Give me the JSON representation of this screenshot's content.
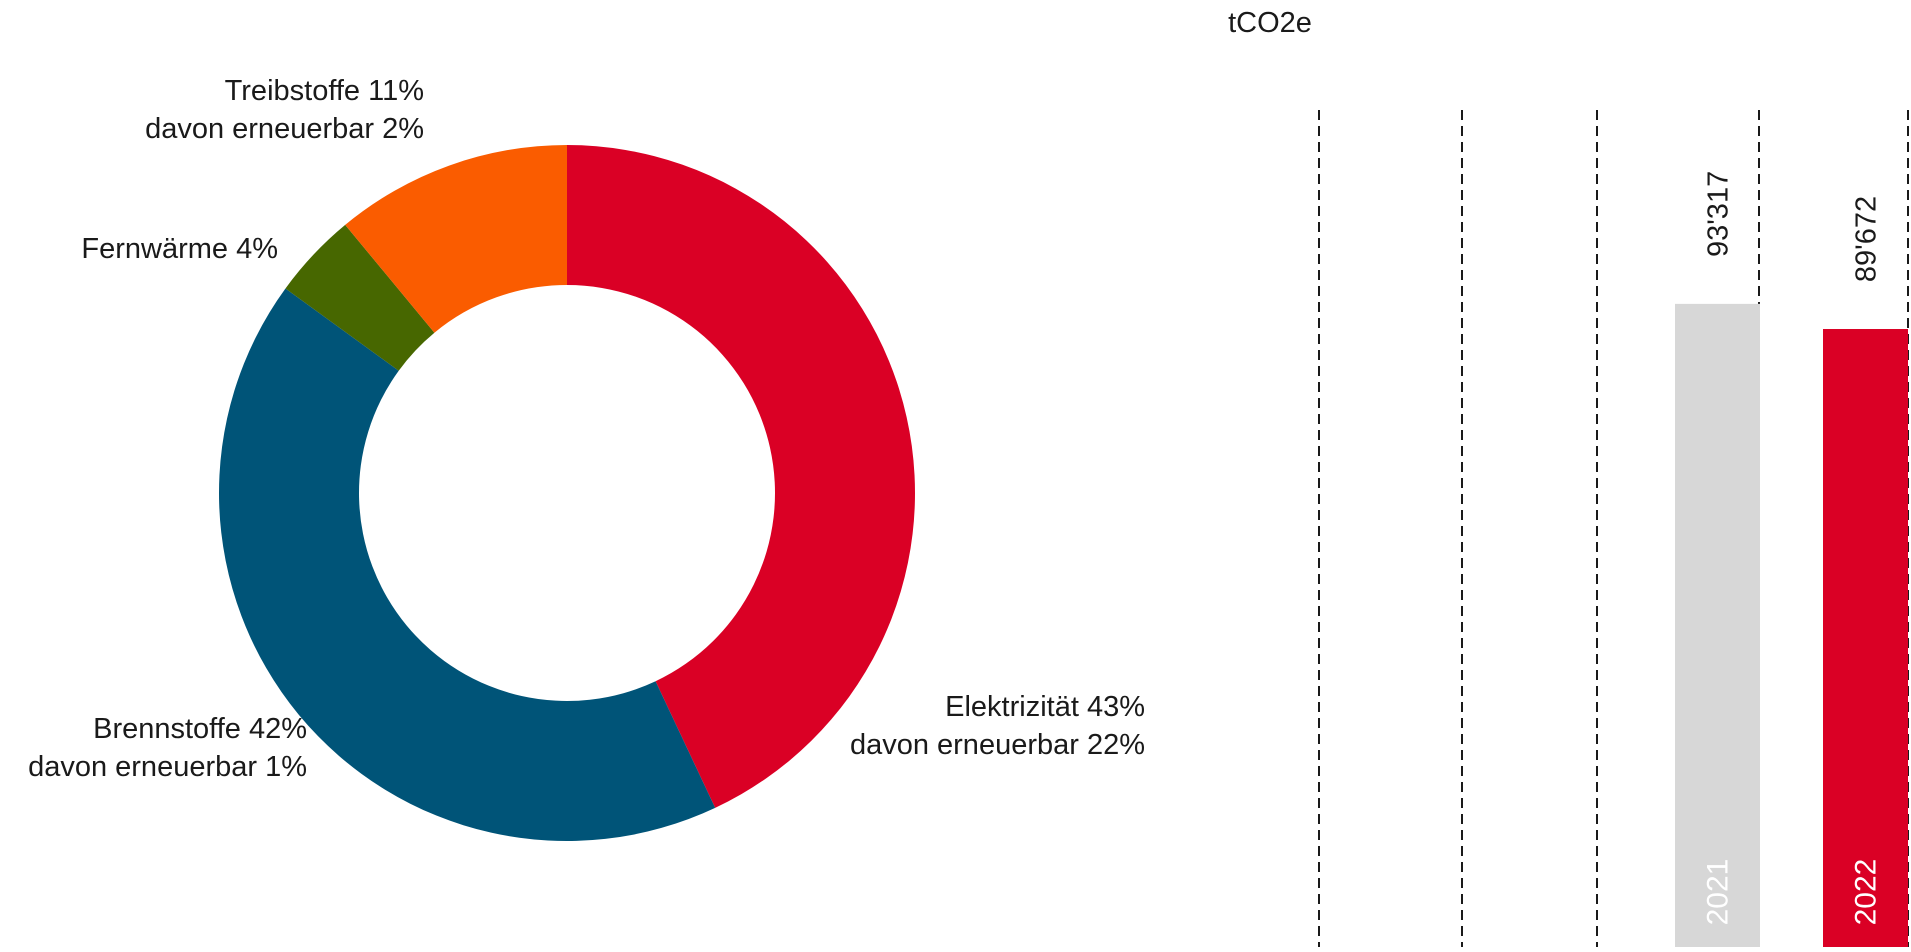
{
  "colors": {
    "elektrizitaet": "#DA0025",
    "brennstoffe": "#005478",
    "fernwaerme": "#476700",
    "treibstoffe": "#FA5C00",
    "bar_2021": "#D7D7D7",
    "bar_2022": "#DA0025",
    "text": "#1A1A1A",
    "gridline": "#1A1A1A"
  },
  "chart_data": [
    {
      "type": "pie",
      "variant": "donut",
      "title": "",
      "slices": [
        {
          "name": "Elektrizität",
          "value": 43,
          "label": "Elektrizität 43%",
          "sublabel": "davon erneuerbar 22%",
          "color": "#DA0025"
        },
        {
          "name": "Brennstoffe",
          "value": 42,
          "label": "Brennstoffe 42%",
          "sublabel": "davon erneuerbar 1%",
          "color": "#005478"
        },
        {
          "name": "Fernwärme",
          "value": 4,
          "label": "Fernwärme 4%",
          "sublabel": "",
          "color": "#476700"
        },
        {
          "name": "Treibstoffe",
          "value": 11,
          "label": "Treibstoffe 11%",
          "sublabel": "davon erneuerbar 2%",
          "color": "#FA5C00"
        }
      ]
    },
    {
      "type": "bar",
      "orientation": "vertical",
      "unit_label": "tCO2e",
      "categories": [
        "2021",
        "2022"
      ],
      "values": [
        93317,
        89672
      ],
      "value_labels": [
        "93'317",
        "89'672"
      ],
      "colors": [
        "#D7D7D7",
        "#DA0025"
      ],
      "ylim": [
        0,
        120000
      ],
      "grid": "dashed vertical lines",
      "legend": "none"
    }
  ]
}
